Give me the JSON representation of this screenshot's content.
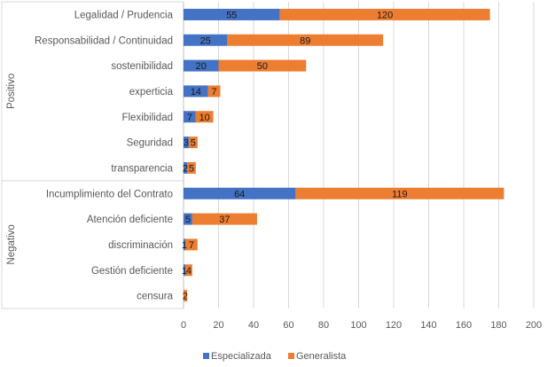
{
  "chart_data": {
    "type": "bar",
    "orientation": "horizontal",
    "stacked": true,
    "title": "",
    "xlabel": "",
    "ylabel": "",
    "xlim": [
      0,
      200
    ],
    "xticks": [
      0,
      20,
      40,
      60,
      80,
      100,
      120,
      140,
      160,
      180,
      200
    ],
    "grid": true,
    "legend_position": "bottom",
    "groups": [
      {
        "name": "Positivo",
        "categories": [
          "Legalidad / Prudencia",
          "Responsabilidad / Continuidad",
          "sostenibilidad",
          "experticia",
          "Flexibilidad",
          "Seguridad",
          "transparencia"
        ]
      },
      {
        "name": "Negativo",
        "categories": [
          "Incumplimiento del Contrato",
          "Atención deficiente",
          "discriminación",
          "Gestión deficiente",
          "censura"
        ]
      }
    ],
    "categories": [
      "Legalidad / Prudencia",
      "Responsabilidad / Continuidad",
      "sostenibilidad",
      "experticia",
      "Flexibilidad",
      "Seguridad",
      "transparencia",
      "Incumplimiento del Contrato",
      "Atención deficiente",
      "discriminación",
      "Gestión deficiente",
      "censura"
    ],
    "series": [
      {
        "name": "Especializada",
        "color": "#4472C4",
        "values": [
          55,
          25,
          20,
          14,
          7,
          3,
          2,
          64,
          5,
          1,
          1,
          0
        ]
      },
      {
        "name": "Generalista",
        "color": "#ED7D31",
        "values": [
          120,
          89,
          50,
          7,
          10,
          5,
          5,
          119,
          37,
          7,
          4,
          2
        ]
      }
    ]
  }
}
